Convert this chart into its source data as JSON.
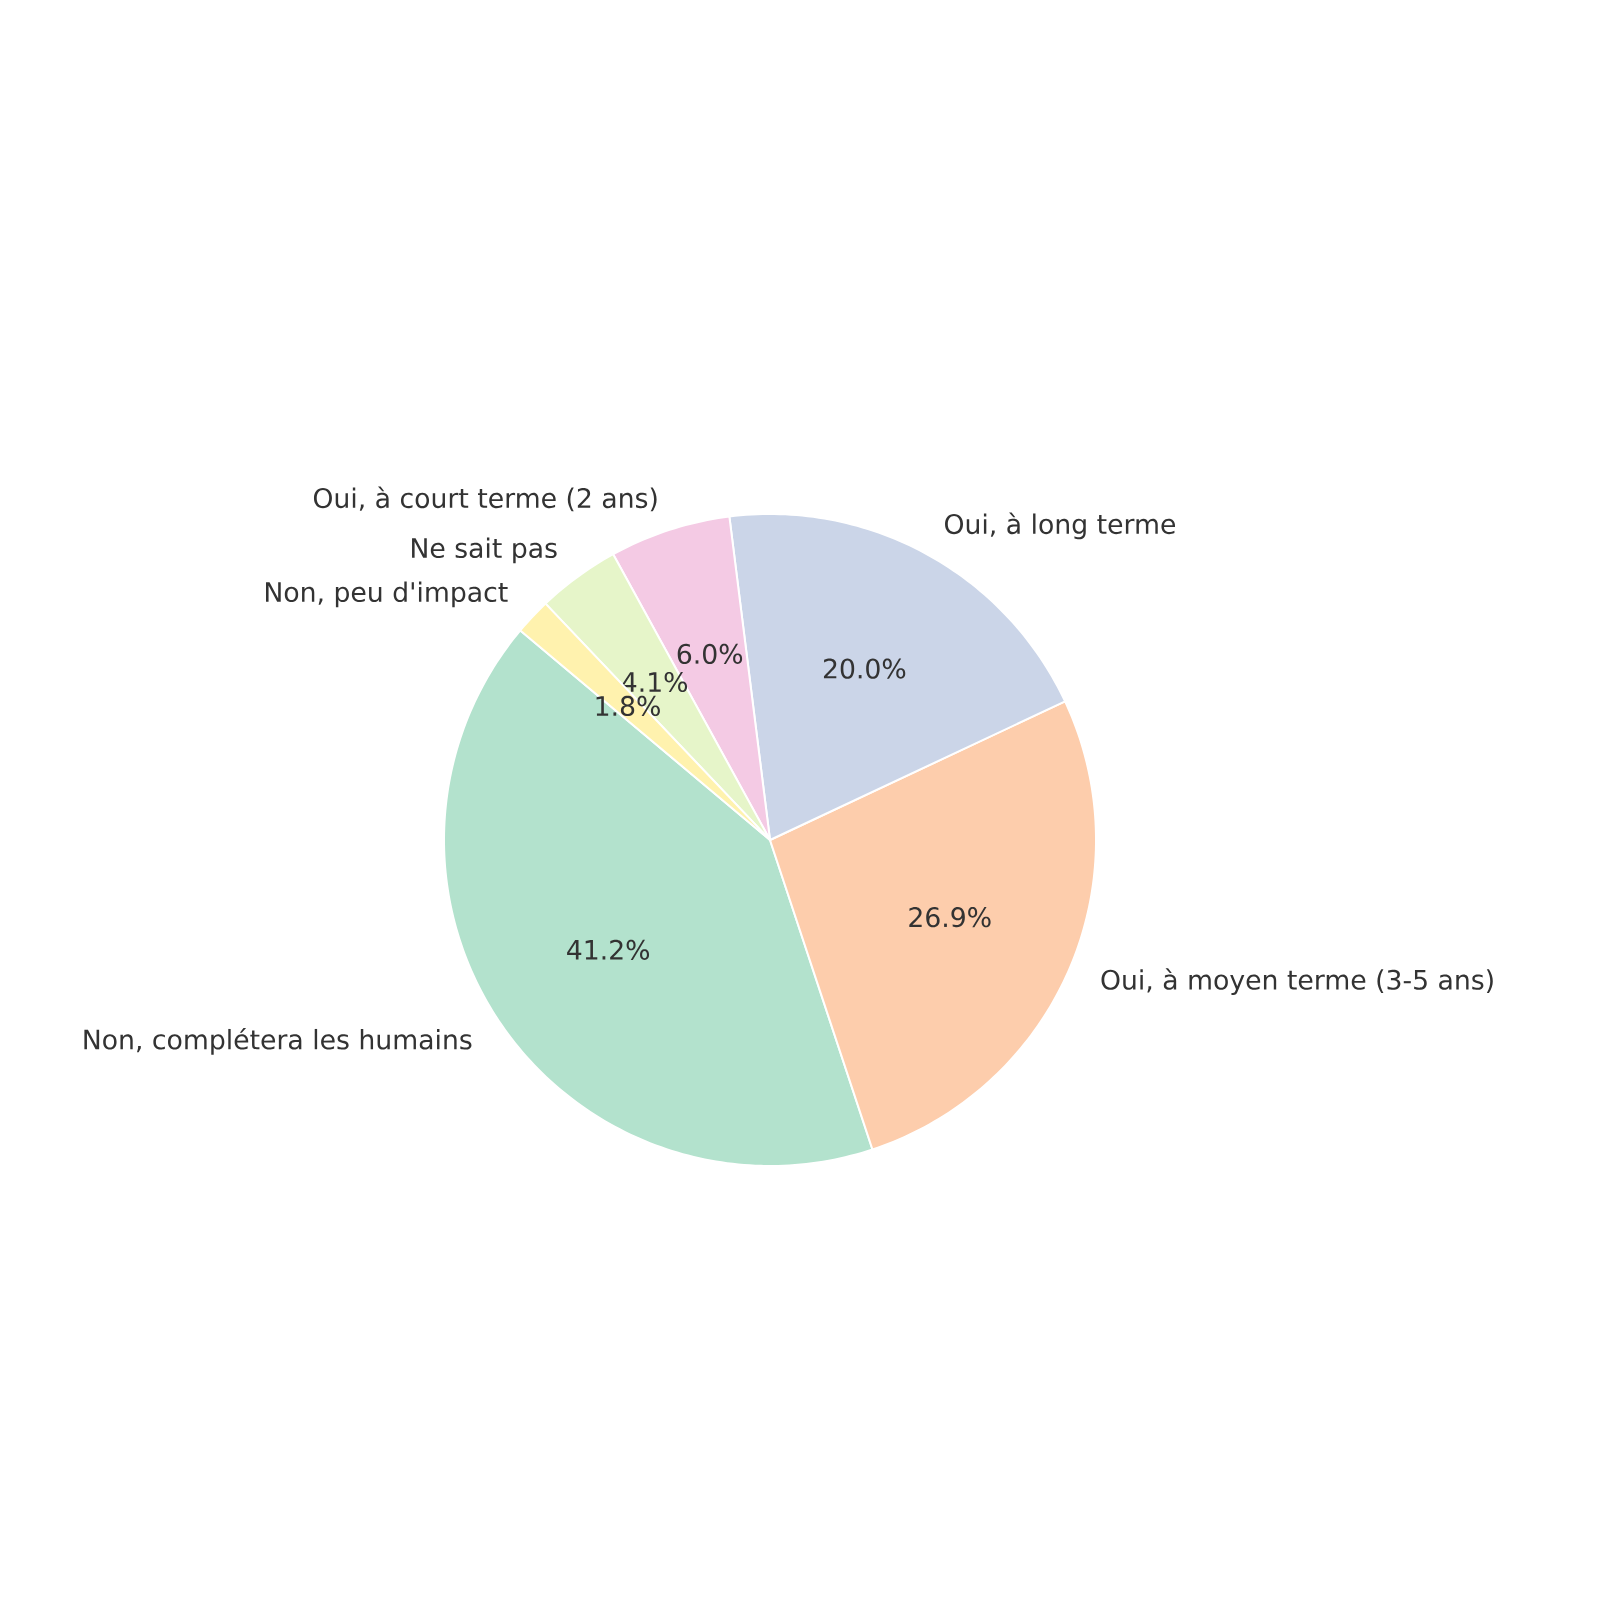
{
  "chart_data": {
    "type": "pie",
    "categories": [
      "Non, complétera les humains",
      "Oui, à moyen terme (3-5 ans)",
      "Oui, à long terme",
      "Oui, à court terme (2 ans)",
      "Ne sait pas",
      "Non, peu d'impact"
    ],
    "values": [
      41.2,
      26.9,
      20.0,
      6.0,
      4.1,
      1.8
    ],
    "value_labels": [
      "41.2%",
      "26.9%",
      "20.0%",
      "6.0%",
      "4.1%",
      "1.8%"
    ],
    "colors": [
      "#b3e2cd",
      "#fdcdac",
      "#cbd5e8",
      "#f4cae4",
      "#e6f5c9",
      "#fff2ae"
    ]
  }
}
